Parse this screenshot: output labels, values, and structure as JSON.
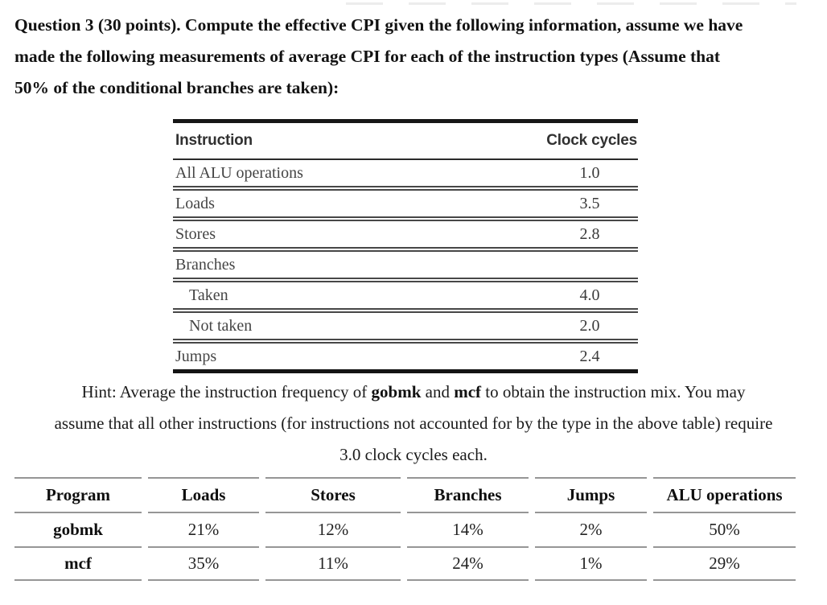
{
  "question": {
    "lines": [
      "Question 3 (30 points). Compute the effective CPI given the following information, assume we have",
      "made the following measurements of average CPI for each of the instruction types (Assume that",
      "50% of the conditional branches are taken):"
    ]
  },
  "cpi_table": {
    "header": {
      "instruction": "Instruction",
      "clock_cycles": "Clock cycles"
    },
    "rows": [
      {
        "label": "All ALU operations",
        "value": "1.0"
      },
      {
        "label": "Loads",
        "value": "3.5"
      },
      {
        "label": "Stores",
        "value": "2.8"
      },
      {
        "label": "Branches",
        "value": ""
      },
      {
        "label": "Taken",
        "value": "4.0"
      },
      {
        "label": "Not taken",
        "value": "2.0"
      },
      {
        "label": "Jumps",
        "value": "2.4"
      }
    ]
  },
  "hint": {
    "l1_pre": "Hint: Average the instruction frequency of ",
    "l1_bold1": "gobmk",
    "l1_mid": " and ",
    "l1_bold2": "mcf",
    "l1_post": " to obtain the instruction mix. You may",
    "l2": "assume that all other instructions (for instructions not accounted for by the type in the above table) require",
    "l3": "3.0 clock cycles each."
  },
  "mix_table": {
    "headers": [
      "Program",
      "Loads",
      "Stores",
      "Branches",
      "Jumps",
      "ALU operations"
    ],
    "rows": [
      {
        "program": "gobmk",
        "values": [
          "21%",
          "12%",
          "14%",
          "2%",
          "50%"
        ]
      },
      {
        "program": "mcf",
        "values": [
          "35%",
          "11%",
          "24%",
          "1%",
          "29%"
        ]
      }
    ]
  },
  "colors": {
    "background": "#ffffff",
    "text": "#121212",
    "cpi_table_frame": "#161616",
    "cpi_table_rules": "#474747",
    "mix_table_rules": "#969696"
  }
}
